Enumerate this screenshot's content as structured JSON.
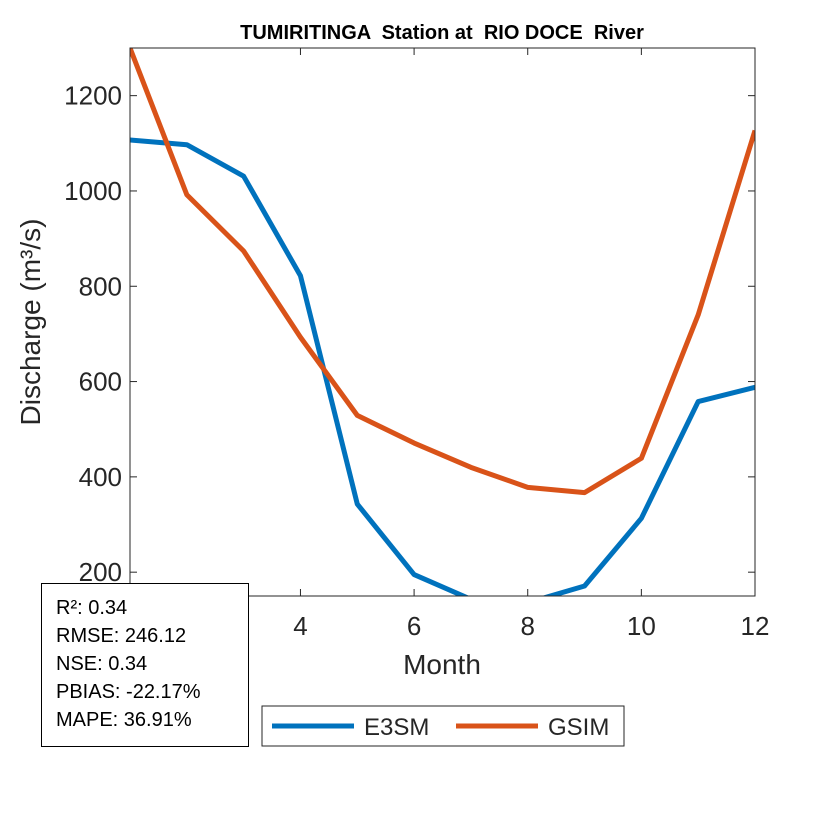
{
  "chart_data": {
    "type": "line",
    "title": "TUMIRITINGA  Station at  RIO DOCE  River",
    "xlabel": "Month",
    "ylabel": "Discharge (m³/s)",
    "xlim": [
      1,
      12
    ],
    "ylim": [
      150,
      1300
    ],
    "xticks": [
      4,
      6,
      8,
      10,
      12
    ],
    "yticks": [
      200,
      400,
      600,
      800,
      1000,
      1200
    ],
    "grid": false,
    "legend_position": "bottom",
    "x": [
      1,
      2,
      3,
      4,
      5,
      6,
      7,
      8,
      9,
      10,
      11,
      12
    ],
    "series": [
      {
        "name": "E3SM",
        "color": "#0072BD",
        "values": [
          1107,
          1097,
          1031,
          822,
          343,
          195,
          143,
          136,
          171,
          313,
          558,
          588
        ]
      },
      {
        "name": "GSIM",
        "color": "#D95319",
        "values": [
          1300,
          992,
          874,
          693,
          529,
          471,
          420,
          378,
          367,
          439,
          740,
          1127
        ]
      }
    ]
  },
  "stats": {
    "r2": "R²: 0.34",
    "rmse": "RMSE: 246.12",
    "nse": "NSE: 0.34",
    "pbias": "PBIAS: -22.17%",
    "mape": "MAPE: 36.91%"
  }
}
